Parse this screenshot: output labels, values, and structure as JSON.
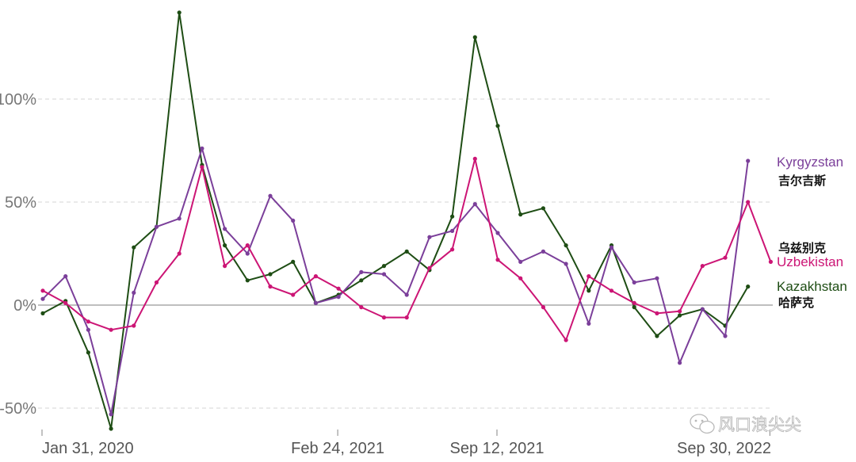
{
  "chart_data": {
    "type": "line",
    "ylim": [
      -62,
      143
    ],
    "y_ticks": [
      -50,
      0,
      50,
      100
    ],
    "y_tick_labels": [
      "-50%",
      "0%",
      "50%",
      "100%"
    ],
    "x_tick_labels": [
      "Jan 31, 2020",
      "Feb 24, 2021",
      "Sep 12, 2021",
      "Sep 30, 2022"
    ],
    "x_tick_positions": [
      0,
      13,
      20,
      32
    ],
    "grid": true,
    "legend": "right, inline labels at line ends",
    "series": [
      {
        "name": "Kazakhstan",
        "name_cn": "哈萨克",
        "color": "#1e4d14",
        "values": [
          -4,
          2,
          -23,
          -60,
          28,
          38,
          142,
          68,
          29,
          12,
          15,
          21,
          1,
          5,
          12,
          19,
          26,
          17,
          43,
          130,
          87,
          44,
          47,
          29,
          7,
          29,
          -1,
          -15,
          -5,
          -2,
          -10,
          9
        ]
      },
      {
        "name": "Kyrgyzstan",
        "name_cn": "吉尔吉斯",
        "color": "#7b3f9a",
        "values": [
          3,
          14,
          -12,
          -53,
          6,
          38,
          42,
          76,
          37,
          25,
          53,
          41,
          1,
          4,
          16,
          15,
          5,
          33,
          36,
          49,
          35,
          21,
          26,
          20,
          -9,
          28,
          11,
          13,
          -28,
          -2,
          -15,
          70
        ]
      },
      {
        "name": "Uzbekistan",
        "name_cn": "乌兹别克",
        "color": "#cc1575",
        "values": [
          7,
          1,
          -8,
          -12,
          -10,
          11,
          25,
          67,
          19,
          29,
          9,
          5,
          14,
          8,
          -1,
          -6,
          -6,
          18,
          27,
          71,
          22,
          13,
          -1,
          -17,
          14,
          7,
          1,
          -4,
          -3,
          19,
          23,
          50,
          21
        ]
      }
    ]
  },
  "watermark": "风口浪尖尖"
}
